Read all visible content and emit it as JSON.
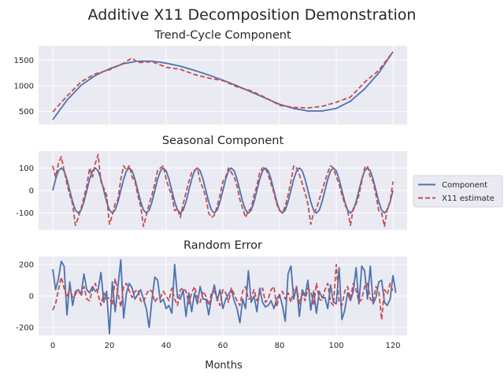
{
  "figure": {
    "suptitle": "Additive X11 Decomposition Demonstration",
    "xlabel": "Months"
  },
  "legend": {
    "placement": "right, outside plot area",
    "entries": [
      {
        "name": "Component",
        "color": "#4c72b0",
        "style": "solid"
      },
      {
        "name": "X11 estimate",
        "color": "#c44e52",
        "style": "dashed"
      }
    ]
  },
  "chart_data": [
    {
      "type": "line",
      "title": "Trend-Cycle Component",
      "xlim": [
        -5,
        125
      ],
      "ylim": [
        250,
        1780
      ],
      "xticks": [
        0,
        20,
        40,
        60,
        80,
        100,
        120
      ],
      "yticks": [
        500,
        1000,
        1500
      ],
      "series": [
        {
          "name": "Component",
          "x": [
            0,
            5,
            10,
            15,
            20,
            25,
            30,
            35,
            40,
            45,
            50,
            55,
            60,
            65,
            70,
            75,
            80,
            85,
            90,
            95,
            100,
            105,
            110,
            115,
            120
          ],
          "values": [
            340,
            720,
            1010,
            1200,
            1330,
            1430,
            1480,
            1480,
            1440,
            1380,
            1300,
            1210,
            1110,
            1000,
            880,
            760,
            640,
            560,
            510,
            510,
            560,
            700,
            940,
            1250,
            1660
          ]
        },
        {
          "name": "X11 estimate",
          "x": [
            0,
            5,
            10,
            15,
            20,
            25,
            28,
            30,
            35,
            40,
            45,
            50,
            55,
            60,
            65,
            70,
            75,
            80,
            85,
            90,
            95,
            100,
            105,
            110,
            115,
            120
          ],
          "values": [
            490,
            800,
            1080,
            1230,
            1310,
            1440,
            1540,
            1450,
            1470,
            1360,
            1320,
            1220,
            1150,
            1100,
            980,
            900,
            770,
            620,
            580,
            570,
            600,
            680,
            780,
            1070,
            1300,
            1660
          ]
        }
      ]
    },
    {
      "type": "line",
      "title": "Seasonal Component",
      "xlim": [
        -5,
        125
      ],
      "ylim": [
        -175,
        175
      ],
      "xticks": [
        0,
        20,
        40,
        60,
        80,
        100,
        120
      ],
      "yticks": [
        -100,
        0,
        100
      ],
      "series": [
        {
          "name": "Component",
          "x_start": 0,
          "x_step": 1,
          "values": [
            0,
            50,
            87,
            100,
            87,
            50,
            0,
            -50,
            -87,
            -100,
            -87,
            -50,
            0,
            50,
            87,
            100,
            87,
            50,
            0,
            -50,
            -87,
            -100,
            -87,
            -50,
            0,
            50,
            87,
            100,
            87,
            50,
            0,
            -50,
            -87,
            -100,
            -87,
            -50,
            0,
            50,
            87,
            100,
            87,
            50,
            0,
            -50,
            -87,
            -100,
            -87,
            -50,
            0,
            50,
            87,
            100,
            87,
            50,
            0,
            -50,
            -87,
            -100,
            -87,
            -50,
            0,
            50,
            87,
            100,
            87,
            50,
            0,
            -50,
            -87,
            -100,
            -87,
            -50,
            0,
            50,
            87,
            100,
            87,
            50,
            0,
            -50,
            -87,
            -100,
            -87,
            -50,
            0,
            50,
            87,
            100,
            87,
            50,
            0,
            -50,
            -87,
            -100,
            -87,
            -50,
            0,
            50,
            87,
            100,
            87,
            50,
            0,
            -50,
            -87,
            -100,
            -87,
            -50,
            0,
            50,
            87,
            100,
            87,
            50,
            0,
            -50,
            -87,
            -100,
            -87,
            -50,
            0
          ]
        },
        {
          "name": "X11 estimate",
          "x_start": 0,
          "x_step": 1,
          "values": [
            110,
            60,
            120,
            150,
            90,
            30,
            -20,
            -60,
            -155,
            -120,
            -80,
            -30,
            20,
            100,
            60,
            120,
            160,
            40,
            10,
            -20,
            -150,
            -110,
            -60,
            -40,
            50,
            110,
            90,
            110,
            60,
            40,
            -20,
            -70,
            -160,
            -110,
            -60,
            -20,
            30,
            90,
            100,
            110,
            50,
            10,
            -20,
            -90,
            -80,
            -120,
            -60,
            -10,
            40,
            80,
            90,
            100,
            40,
            10,
            -30,
            -100,
            -120,
            -110,
            -70,
            -20,
            40,
            60,
            100,
            80,
            60,
            20,
            -40,
            -80,
            -120,
            -90,
            -80,
            -20,
            20,
            80,
            100,
            100,
            70,
            30,
            -10,
            -60,
            -90,
            -100,
            -70,
            -20,
            40,
            110,
            100,
            70,
            30,
            -10,
            -60,
            -150,
            -100,
            -80,
            -40,
            0,
            40,
            80,
            110,
            100,
            60,
            30,
            -20,
            -60,
            -90,
            -155,
            -80,
            -60,
            -20,
            40,
            100,
            110,
            60,
            40,
            -20,
            -90,
            -100,
            -160,
            -80,
            -50,
            40
          ]
        }
      ]
    },
    {
      "type": "line",
      "title": "Random Error",
      "xlim": [
        -5,
        125
      ],
      "ylim": [
        -250,
        250
      ],
      "xticks": [
        0,
        20,
        40,
        60,
        80,
        100,
        120
      ],
      "yticks": [
        -200,
        0,
        200
      ],
      "series": [
        {
          "name": "Component",
          "x_start": 0,
          "x_step": 1,
          "values": [
            170,
            40,
            110,
            220,
            190,
            -120,
            90,
            -60,
            30,
            40,
            10,
            140,
            40,
            20,
            60,
            30,
            40,
            150,
            -40,
            30,
            -240,
            90,
            -100,
            60,
            230,
            -140,
            20,
            80,
            50,
            -20,
            10,
            40,
            -20,
            -80,
            -200,
            -20,
            120,
            100,
            -40,
            -20,
            -80,
            -60,
            -110,
            200,
            -10,
            -20,
            40,
            -130,
            20,
            -100,
            20,
            -50,
            60,
            -20,
            -20,
            -120,
            -10,
            70,
            -30,
            40,
            -80,
            -20,
            10,
            40,
            -30,
            -80,
            -170,
            -20,
            -80,
            160,
            -40,
            0,
            -100,
            50,
            -40,
            -70,
            -60,
            -30,
            -80,
            -20,
            10,
            -60,
            -160,
            140,
            190,
            -20,
            60,
            -130,
            40,
            0,
            100,
            -90,
            30,
            -110,
            30,
            -10,
            -10,
            -80,
            70,
            -40,
            -50,
            180,
            -150,
            -90,
            20,
            -30,
            30,
            180,
            -50,
            190,
            160,
            -20,
            190,
            -50,
            -10,
            90,
            100,
            -40,
            -60,
            -20,
            130,
            20
          ]
        },
        {
          "name": "X11 estimate",
          "x_start": 0,
          "x_step": 1,
          "values": [
            -90,
            -50,
            40,
            120,
            50,
            -10,
            50,
            -10,
            10,
            40,
            0,
            60,
            -20,
            -30,
            40,
            80,
            10,
            -60,
            20,
            -20,
            -10,
            -60,
            110,
            20,
            -70,
            60,
            80,
            30,
            -10,
            30,
            40,
            -30,
            -40,
            10,
            40,
            30,
            -40,
            -10,
            -10,
            30,
            0,
            -30,
            50,
            -20,
            -60,
            40,
            50,
            30,
            -50,
            20,
            60,
            -10,
            -40,
            30,
            0,
            -60,
            20,
            30,
            -20,
            -60,
            40,
            20,
            -40,
            50,
            10,
            -30,
            -60,
            30,
            60,
            -20,
            -10,
            40,
            -30,
            20,
            50,
            -40,
            -20,
            40,
            60,
            -70,
            10,
            30,
            -20,
            20,
            -40,
            40,
            60,
            -50,
            20,
            -30,
            50,
            30,
            -60,
            80,
            -20,
            -30,
            40,
            80,
            -40,
            -60,
            200,
            -40,
            -60,
            30,
            60,
            -20,
            80,
            40,
            -40,
            -20,
            60,
            80,
            -20,
            -40,
            60,
            30,
            -150,
            40,
            10,
            80,
            30
          ]
        }
      ]
    }
  ]
}
